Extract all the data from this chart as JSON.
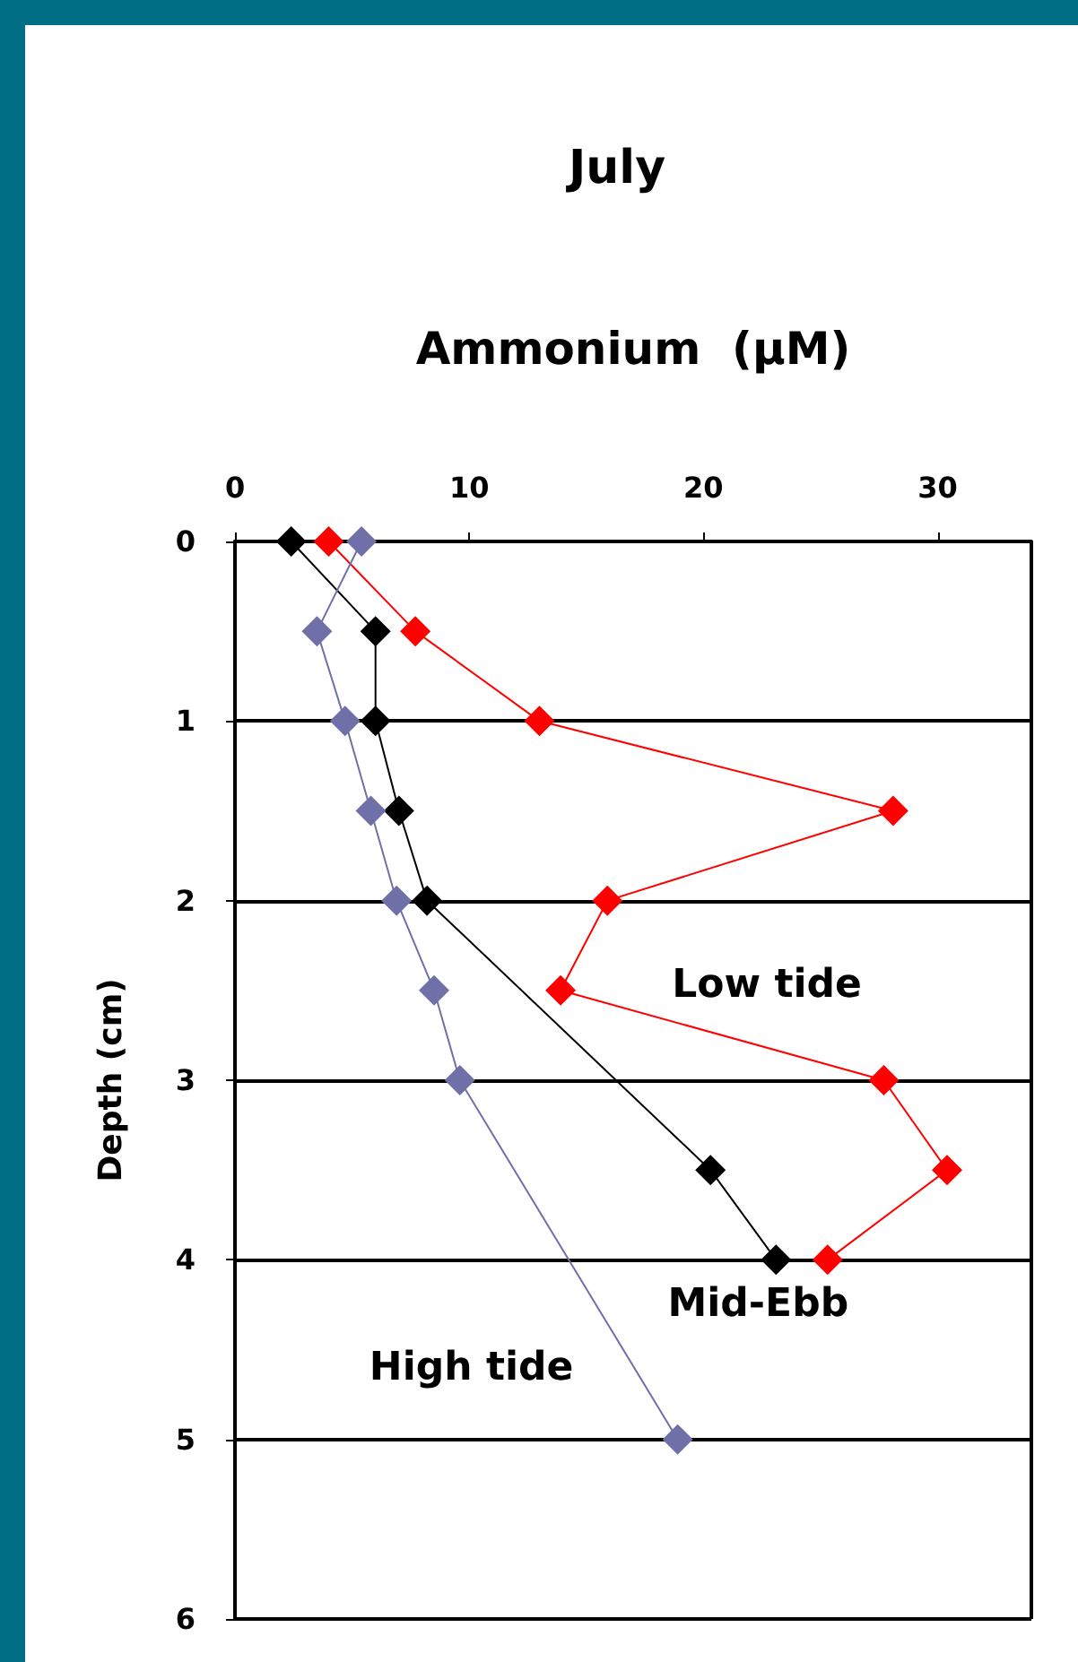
{
  "chart_data": {
    "type": "line",
    "title": "July",
    "xlabel": "Ammonium  (µM)",
    "ylabel": "Depth (cm)",
    "xlim": [
      0,
      34
    ],
    "xticks": [
      0,
      10,
      20,
      30
    ],
    "ylim": [
      6,
      0
    ],
    "yticks": [
      0,
      1,
      2,
      3,
      4,
      5,
      6
    ],
    "grid": "y",
    "legend": false,
    "marker": "diamond",
    "line_style": "solid",
    "series": [
      {
        "name": "Low tide",
        "color": "#ff0000",
        "x": [
          4.0,
          7.7,
          13.0,
          28.1,
          15.9,
          13.9,
          27.7,
          30.4,
          25.3
        ],
        "values": [
          0,
          0.5,
          1,
          1.5,
          2,
          2.5,
          3,
          3.5,
          4
        ]
      },
      {
        "name": "Mid-Ebb",
        "color": "#000000",
        "x": [
          2.4,
          6.0,
          6.0,
          7.0,
          8.2,
          20.3,
          23.1
        ],
        "values": [
          0,
          0.5,
          1,
          1.5,
          2,
          3.5,
          4
        ]
      },
      {
        "name": "High tide",
        "color": "#7070a8",
        "x": [
          5.4,
          3.5,
          4.7,
          5.8,
          6.9,
          8.5,
          9.6,
          18.9
        ],
        "values": [
          0,
          0.5,
          1,
          1.5,
          2,
          2.5,
          3,
          5
        ]
      }
    ]
  }
}
